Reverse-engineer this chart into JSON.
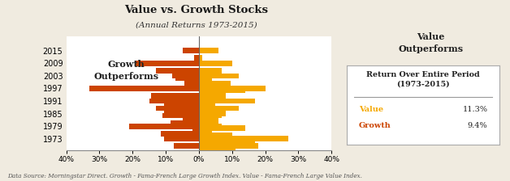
{
  "title": "Value vs. Growth Stocks",
  "subtitle": "(Annual Returns 1973-2015)",
  "background_color": "#f0ebe0",
  "plot_bg_color": "#ffffff",
  "growth_color": "#cc4400",
  "value_color": "#f5a800",
  "footnote": "Data Source: Morningstar Direct. Growth - Fama-French Large Growth Index. Value - Fama-French Large Value Index.",
  "periods": [
    "2015",
    "2009",
    "2003",
    "1997",
    "1991",
    "1985",
    "1979",
    "1973"
  ],
  "value_return_overall": "11.3%",
  "growth_return_overall": "9.4%",
  "period_bars": [
    [
      [
        -5.0,
        -1.5
      ],
      [
        6.0,
        1.0
      ]
    ],
    [
      [
        -19.0,
        -13.0,
        -7.0
      ],
      [
        10.0,
        7.0,
        4.0
      ]
    ],
    [
      [
        -8.0,
        -4.5
      ],
      [
        12.0,
        9.5,
        14.0,
        7.5
      ]
    ],
    [
      [
        -33.0,
        -14.5,
        -10.5,
        -8.5
      ],
      [
        20.0,
        8.0,
        5.0,
        4.0
      ]
    ],
    [
      [
        -15.0,
        -13.0,
        -11.0,
        -8.5
      ],
      [
        17.0,
        12.0,
        7.0,
        4.0
      ]
    ],
    [
      [
        -10.5,
        -5.0,
        -2.0
      ],
      [
        8.0,
        6.0,
        14.0,
        10.0
      ]
    ],
    [
      [
        -21.0,
        -11.5
      ],
      [
        7.0,
        4.0,
        17.0,
        11.0
      ]
    ],
    [
      [
        -10.5,
        -7.5
      ],
      [
        27.0,
        18.0,
        13.0,
        9.0
      ]
    ]
  ]
}
